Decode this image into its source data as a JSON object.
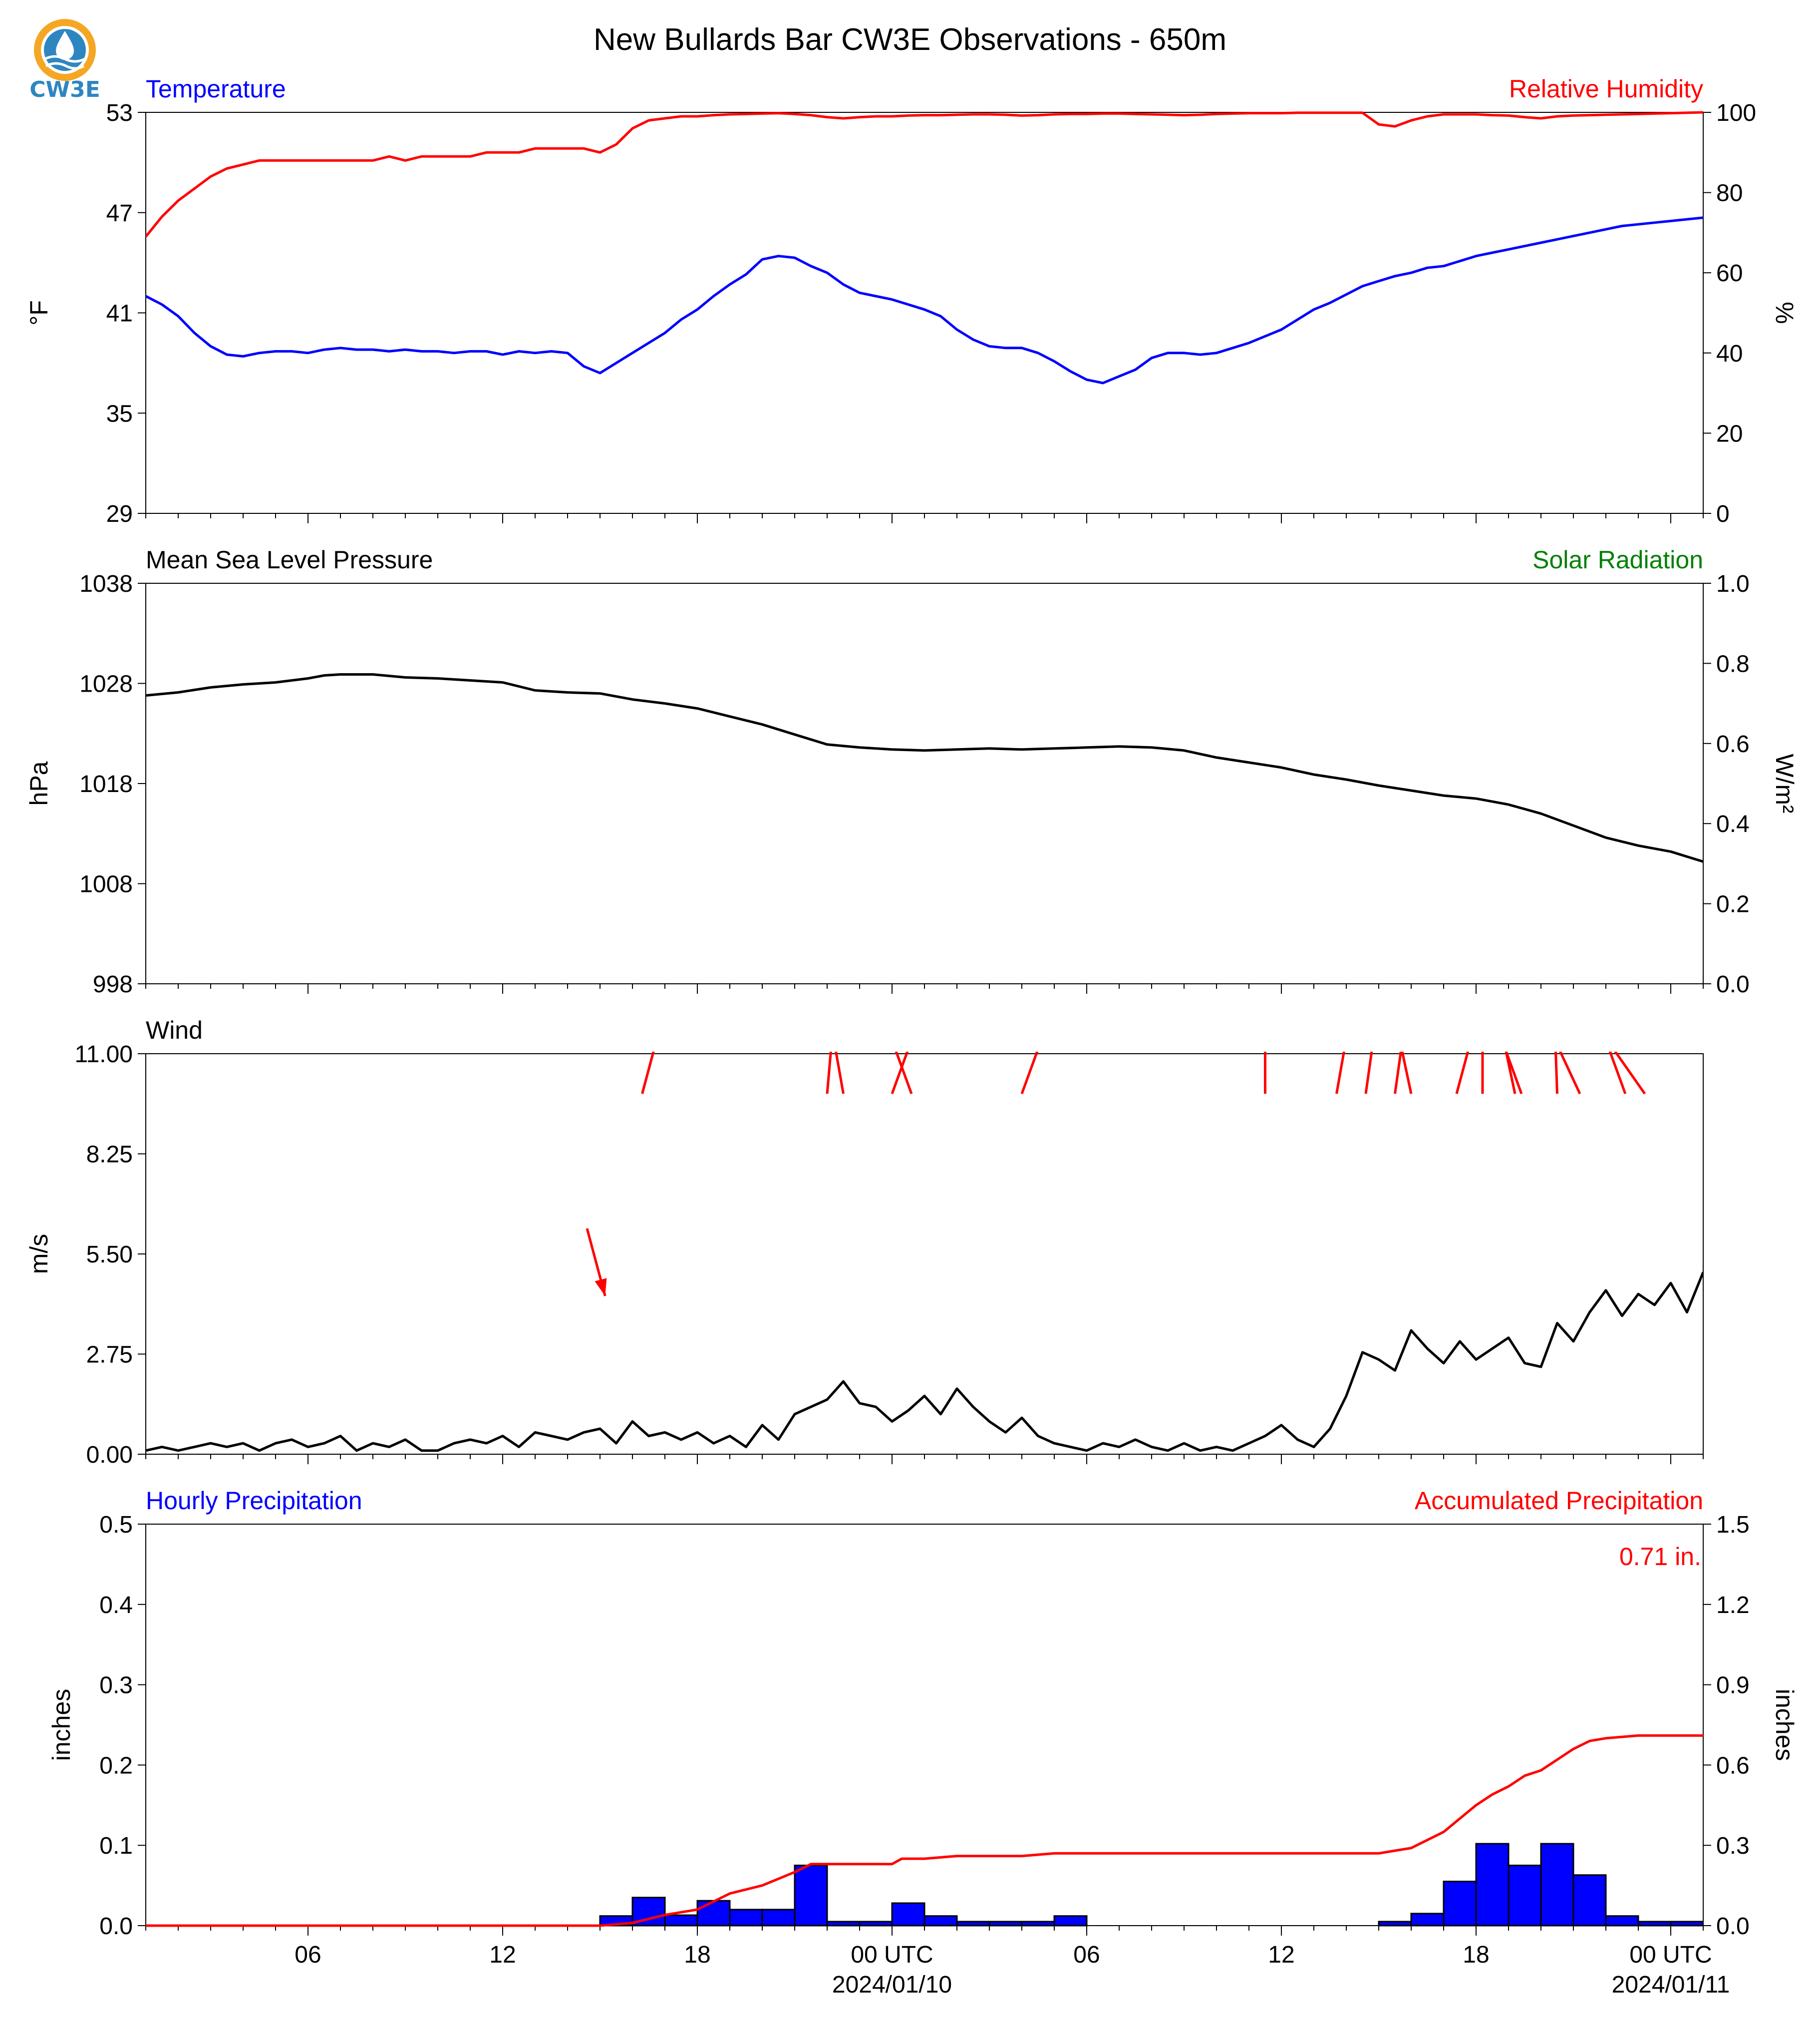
{
  "figure": {
    "title": "New Bullards Bar CW3E Observations - 650m",
    "logo_text": "CW3E"
  },
  "colors": {
    "temperature": "#0000ff",
    "humidity": "#ff0000",
    "pressure": "#000000",
    "solar": "#008000",
    "wind": "#000000",
    "wind_arrow": "#ff0000",
    "hourly_precip_fill": "#0000ff",
    "accum_precip": "#ff0000",
    "logo_orange": "#f5a623",
    "logo_blue": "#2e86c1"
  },
  "time_axis": {
    "start_hour": 0,
    "end_hour": 48,
    "major_ticks": [
      {
        "hour": 5,
        "label": "06"
      },
      {
        "hour": 11,
        "label": "12"
      },
      {
        "hour": 17,
        "label": "18"
      },
      {
        "hour": 23,
        "label": "00 UTC",
        "sub": "2024/01/10"
      },
      {
        "hour": 29,
        "label": "06"
      },
      {
        "hour": 35,
        "label": "12"
      },
      {
        "hour": 41,
        "label": "18"
      },
      {
        "hour": 47,
        "label": "00 UTC",
        "sub": "2024/01/11"
      }
    ]
  },
  "chart_data": [
    {
      "type": "line",
      "panel": "temperature",
      "title_left": "Temperature",
      "title_right": "Relative Humidity",
      "ylabel_left": "°F",
      "ylabel_right": "%",
      "ylim_left": [
        29,
        53
      ],
      "yticks_left": [
        "53",
        "47",
        "41",
        "35",
        "29"
      ],
      "ylim_right": [
        0,
        100
      ],
      "yticks_right": [
        "100",
        "80",
        "60",
        "40",
        "20",
        "0"
      ],
      "series": [
        {
          "axis": "left",
          "color": "temperature",
          "x": [
            0,
            0.5,
            1,
            1.5,
            2,
            2.5,
            3,
            3.5,
            4,
            4.5,
            5,
            5.5,
            6,
            6.5,
            7,
            7.5,
            8,
            8.5,
            9,
            9.5,
            10,
            10.5,
            11,
            11.5,
            12,
            12.5,
            13,
            13.5,
            14,
            14.5,
            15,
            15.5,
            16,
            16.5,
            17,
            17.5,
            18,
            18.5,
            19,
            19.5,
            20,
            20.5,
            21,
            21.5,
            22,
            22.5,
            23,
            23.5,
            24,
            24.5,
            25,
            25.5,
            26,
            26.5,
            27,
            27.5,
            28,
            28.5,
            29,
            29.5,
            30,
            30.5,
            31,
            31.5,
            32,
            32.5,
            33,
            33.5,
            34,
            34.5,
            35,
            35.5,
            36,
            36.5,
            37,
            37.5,
            38,
            38.5,
            39,
            39.5,
            40,
            40.5,
            41,
            41.5,
            42,
            42.5,
            43,
            43.5,
            44,
            44.5,
            45,
            45.5,
            46,
            46.5,
            47,
            47.5,
            48
          ],
          "values": [
            42.0,
            41.5,
            40.8,
            39.8,
            39.0,
            38.5,
            38.4,
            38.6,
            38.7,
            38.7,
            38.6,
            38.8,
            38.9,
            38.8,
            38.8,
            38.7,
            38.8,
            38.7,
            38.7,
            38.6,
            38.7,
            38.7,
            38.5,
            38.7,
            38.6,
            38.7,
            38.6,
            37.8,
            37.4,
            38.0,
            38.6,
            39.2,
            39.8,
            40.6,
            41.2,
            42.0,
            42.7,
            43.3,
            44.2,
            44.4,
            44.3,
            43.8,
            43.4,
            42.7,
            42.2,
            42.0,
            41.8,
            41.5,
            41.2,
            40.8,
            40.0,
            39.4,
            39.0,
            38.9,
            38.9,
            38.6,
            38.1,
            37.5,
            37.0,
            36.8,
            37.2,
            37.6,
            38.3,
            38.6,
            38.6,
            38.5,
            38.6,
            38.9,
            39.2,
            39.6,
            40.0,
            40.6,
            41.2,
            41.6,
            42.1,
            42.6,
            42.9,
            43.2,
            43.4,
            43.7,
            43.8,
            44.1,
            44.4,
            44.6,
            44.8,
            45.0,
            45.2,
            45.4,
            45.6,
            45.8,
            46.0,
            46.2,
            46.3,
            46.4,
            46.5,
            46.6,
            46.7
          ]
        },
        {
          "axis": "right",
          "color": "humidity",
          "x": [
            0,
            0.5,
            1,
            1.5,
            2,
            2.5,
            3,
            3.5,
            4,
            4.5,
            5,
            5.5,
            6,
            6.5,
            7,
            7.5,
            8,
            8.5,
            9,
            9.5,
            10,
            10.5,
            11,
            11.5,
            12,
            12.5,
            13,
            13.5,
            14,
            14.5,
            15,
            15.5,
            16,
            16.5,
            17,
            17.5,
            18,
            18.5,
            19,
            19.5,
            20,
            20.5,
            21,
            21.5,
            22,
            22.5,
            23,
            23.5,
            24,
            24.5,
            25,
            25.5,
            26,
            26.5,
            27,
            27.5,
            28,
            28.5,
            29,
            29.5,
            30,
            30.5,
            31,
            31.5,
            32,
            32.5,
            33,
            33.5,
            34,
            34.5,
            35,
            35.5,
            36,
            36.5,
            37,
            37.5,
            38,
            38.5,
            39,
            39.5,
            40,
            40.5,
            41,
            41.5,
            42,
            42.5,
            43,
            43.5,
            44,
            44.5,
            45,
            45.5,
            46,
            46.5,
            47,
            47.5,
            48
          ],
          "values": [
            69,
            74,
            78,
            81,
            84,
            86,
            87,
            88,
            88,
            88,
            88,
            88,
            88,
            88,
            88,
            89,
            88,
            89,
            89,
            89,
            89,
            90,
            90,
            90,
            91,
            91,
            91,
            91,
            90,
            92,
            96,
            98,
            98.5,
            99,
            99,
            99.3,
            99.5,
            99.6,
            99.7,
            99.8,
            99.6,
            99.3,
            98.8,
            98.5,
            98.8,
            99,
            99,
            99.2,
            99.3,
            99.3,
            99.4,
            99.5,
            99.5,
            99.4,
            99.2,
            99.3,
            99.5,
            99.6,
            99.6,
            99.7,
            99.7,
            99.6,
            99.5,
            99.4,
            99.3,
            99.4,
            99.6,
            99.7,
            99.8,
            99.8,
            99.8,
            99.9,
            99.9,
            99.9,
            99.9,
            99.9,
            97,
            96.5,
            98,
            99,
            99.5,
            99.5,
            99.5,
            99.3,
            99.2,
            98.8,
            98.5,
            99,
            99.2,
            99.3,
            99.4,
            99.5,
            99.6,
            99.7,
            99.8,
            99.9,
            100
          ]
        }
      ]
    },
    {
      "type": "line",
      "panel": "pressure",
      "title_left": "Mean Sea Level Pressure",
      "title_right": "Solar Radiation",
      "ylabel_left": "hPa",
      "ylabel_right": "W/m²",
      "ylim_left": [
        998,
        1038
      ],
      "yticks_left": [
        "1038",
        "1028",
        "1018",
        "1008",
        "998"
      ],
      "ylim_right": [
        0,
        1
      ],
      "yticks_right": [
        "1.0",
        "0.8",
        "0.6",
        "0.4",
        "0.2",
        "0.0"
      ],
      "series": [
        {
          "axis": "left",
          "color": "pressure",
          "x": [
            0,
            1,
            2,
            3,
            4,
            5,
            5.5,
            6,
            7,
            8,
            9,
            10,
            11,
            12,
            13,
            14,
            15,
            16,
            17,
            18,
            19,
            20,
            21,
            22,
            23,
            24,
            25,
            26,
            27,
            28,
            29,
            30,
            31,
            32,
            33,
            34,
            35,
            36,
            37,
            38,
            39,
            40,
            41,
            42,
            43,
            44,
            45,
            46,
            47,
            48
          ],
          "values": [
            1026.8,
            1027.1,
            1027.6,
            1027.9,
            1028.1,
            1028.5,
            1028.8,
            1028.9,
            1028.9,
            1028.6,
            1028.5,
            1028.3,
            1028.1,
            1027.3,
            1027.1,
            1027.0,
            1026.4,
            1026.0,
            1025.5,
            1024.7,
            1023.9,
            1022.9,
            1021.9,
            1021.6,
            1021.4,
            1021.3,
            1021.4,
            1021.5,
            1021.4,
            1021.5,
            1021.6,
            1021.7,
            1021.6,
            1021.3,
            1020.6,
            1020.1,
            1019.6,
            1018.9,
            1018.4,
            1017.8,
            1017.3,
            1016.8,
            1016.5,
            1015.9,
            1015.0,
            1013.8,
            1012.6,
            1011.8,
            1011.2,
            1010.2
          ]
        }
      ]
    },
    {
      "type": "line",
      "panel": "wind",
      "title_left": "Wind",
      "ylabel_left": "m/s",
      "ylim_left": [
        0,
        11
      ],
      "yticks_left": [
        "11.00",
        "8.25",
        "5.50",
        "2.75",
        "0.00"
      ],
      "series": [
        {
          "axis": "left",
          "color": "wind",
          "x": [
            0,
            0.5,
            1,
            1.5,
            2,
            2.5,
            3,
            3.5,
            4,
            4.5,
            5,
            5.5,
            6,
            6.5,
            7,
            7.5,
            8,
            8.5,
            9,
            9.5,
            10,
            10.5,
            11,
            11.5,
            12,
            12.5,
            13,
            13.5,
            14,
            14.5,
            15,
            15.5,
            16,
            16.5,
            17,
            17.5,
            18,
            18.5,
            19,
            19.5,
            20,
            20.5,
            21,
            21.5,
            22,
            22.5,
            23,
            23.5,
            24,
            24.5,
            25,
            25.5,
            26,
            26.5,
            27,
            27.5,
            28,
            28.5,
            29,
            29.5,
            30,
            30.5,
            31,
            31.5,
            32,
            32.5,
            33,
            33.5,
            34,
            34.5,
            35,
            35.5,
            36,
            36.5,
            37,
            37.5,
            38,
            38.5,
            39,
            39.5,
            40,
            40.5,
            41,
            41.5,
            42,
            42.5,
            43,
            43.5,
            44,
            44.5,
            45,
            45.5,
            46,
            46.5,
            47,
            47.5,
            48
          ],
          "values": [
            0.1,
            0.2,
            0.1,
            0.2,
            0.3,
            0.2,
            0.3,
            0.1,
            0.3,
            0.4,
            0.2,
            0.3,
            0.5,
            0.1,
            0.3,
            0.2,
            0.4,
            0.1,
            0.1,
            0.3,
            0.4,
            0.3,
            0.5,
            0.2,
            0.6,
            0.5,
            0.4,
            0.6,
            0.7,
            0.3,
            0.9,
            0.5,
            0.6,
            0.4,
            0.6,
            0.3,
            0.5,
            0.2,
            0.8,
            0.4,
            1.1,
            1.3,
            1.5,
            2.0,
            1.4,
            1.3,
            0.9,
            1.2,
            1.6,
            1.1,
            1.8,
            1.3,
            0.9,
            0.6,
            1.0,
            0.5,
            0.3,
            0.2,
            0.1,
            0.3,
            0.2,
            0.4,
            0.2,
            0.1,
            0.3,
            0.1,
            0.2,
            0.1,
            0.3,
            0.5,
            0.8,
            0.4,
            0.2,
            0.7,
            1.6,
            2.8,
            2.6,
            2.3,
            3.4,
            2.9,
            2.5,
            3.1,
            2.6,
            2.9,
            3.2,
            2.5,
            2.4,
            3.6,
            3.1,
            3.9,
            4.5,
            3.8,
            4.4,
            4.1,
            4.7,
            3.9,
            5.0
          ]
        }
      ],
      "wind_arrows": [
        {
          "hour": 13.6,
          "speed": 6.2,
          "dir_deg": 345
        },
        {
          "hour": 15.3,
          "speed": 9.9,
          "dir_deg": 195
        },
        {
          "hour": 21.0,
          "speed": 9.9,
          "dir_deg": 185
        },
        {
          "hour": 21.5,
          "speed": 9.9,
          "dir_deg": 170
        },
        {
          "hour": 23.0,
          "speed": 9.9,
          "dir_deg": 200
        },
        {
          "hour": 23.6,
          "speed": 9.9,
          "dir_deg": 160
        },
        {
          "hour": 27.0,
          "speed": 9.9,
          "dir_deg": 200
        },
        {
          "hour": 34.5,
          "speed": 9.9,
          "dir_deg": 180
        },
        {
          "hour": 36.7,
          "speed": 9.9,
          "dir_deg": 190
        },
        {
          "hour": 37.6,
          "speed": 9.9,
          "dir_deg": 188
        },
        {
          "hour": 38.5,
          "speed": 9.9,
          "dir_deg": 188
        },
        {
          "hour": 39.0,
          "speed": 9.9,
          "dir_deg": 168
        },
        {
          "hour": 40.4,
          "speed": 9.9,
          "dir_deg": 195
        },
        {
          "hour": 41.2,
          "speed": 9.9,
          "dir_deg": 180
        },
        {
          "hour": 42.2,
          "speed": 9.9,
          "dir_deg": 168
        },
        {
          "hour": 42.4,
          "speed": 9.9,
          "dir_deg": 160
        },
        {
          "hour": 43.5,
          "speed": 9.9,
          "dir_deg": 178
        },
        {
          "hour": 44.2,
          "speed": 9.9,
          "dir_deg": 155
        },
        {
          "hour": 45.6,
          "speed": 9.9,
          "dir_deg": 160
        },
        {
          "hour": 46.2,
          "speed": 9.9,
          "dir_deg": 145
        }
      ]
    },
    {
      "type": "bar",
      "panel": "precip",
      "title_left": "Hourly Precipitation",
      "title_right": "Accumulated Precipitation",
      "ylabel_left": "inches",
      "ylabel_right": "inches",
      "ylim_left": [
        0,
        0.5
      ],
      "yticks_left": [
        "0.5",
        "0.4",
        "0.3",
        "0.2",
        "0.1",
        "0.0"
      ],
      "ylim_right": [
        0,
        1.5
      ],
      "yticks_right": [
        "1.5",
        "1.2",
        "0.9",
        "0.6",
        "0.3",
        "0.0"
      ],
      "total_label": "0.71 in.",
      "bars": {
        "hour_start": [
          14,
          15,
          16,
          17,
          18,
          19,
          20,
          21,
          22,
          23,
          24,
          25,
          26,
          27,
          28,
          29,
          30,
          38,
          39,
          40,
          41,
          42,
          43,
          44,
          45,
          46,
          47
        ],
        "values": [
          0.012,
          0.035,
          0.013,
          0.031,
          0.02,
          0.02,
          0.075,
          0.005,
          0.005,
          0.028,
          0.012,
          0.005,
          0.005,
          0.005,
          0.012,
          0.0,
          0.0,
          0.005,
          0.015,
          0.055,
          0.102,
          0.075,
          0.102,
          0.063,
          0.012,
          0.005,
          0.005
        ]
      },
      "series": [
        {
          "axis": "right",
          "color": "accum_precip",
          "x": [
            0,
            14,
            15,
            16,
            17,
            17.5,
            18,
            19,
            20,
            20.5,
            21,
            22,
            23,
            23.3,
            24,
            25,
            26,
            27,
            28,
            29,
            30,
            31,
            32,
            33,
            34,
            35,
            36,
            37,
            38,
            38.5,
            39,
            39.5,
            40,
            40.5,
            41,
            41.5,
            42,
            42.5,
            43,
            43.5,
            44,
            44.5,
            45,
            46,
            47,
            48
          ],
          "values": [
            0,
            0,
            0.01,
            0.04,
            0.06,
            0.09,
            0.12,
            0.15,
            0.2,
            0.23,
            0.23,
            0.23,
            0.23,
            0.25,
            0.25,
            0.26,
            0.26,
            0.26,
            0.27,
            0.27,
            0.27,
            0.27,
            0.27,
            0.27,
            0.27,
            0.27,
            0.27,
            0.27,
            0.27,
            0.28,
            0.29,
            0.32,
            0.35,
            0.4,
            0.45,
            0.49,
            0.52,
            0.56,
            0.58,
            0.62,
            0.66,
            0.69,
            0.7,
            0.71,
            0.71,
            0.71
          ]
        }
      ]
    }
  ]
}
